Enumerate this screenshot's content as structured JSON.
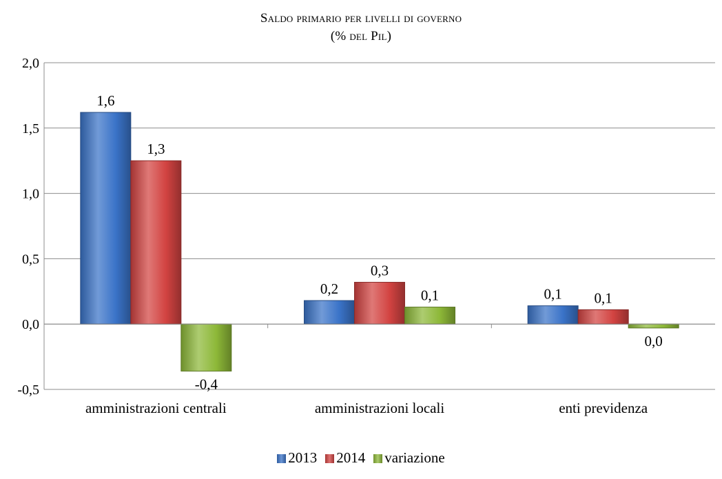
{
  "chart_data": {
    "type": "bar",
    "title": "Saldo primario per livelli di governo",
    "subtitle": "(% del Pil)",
    "categories": [
      "amministrazioni centrali",
      "amministrazioni locali",
      "enti previdenza"
    ],
    "series": [
      {
        "name": "2013",
        "values": [
          1.62,
          0.18,
          0.14
        ],
        "labels": [
          "1,6",
          "0,2",
          "0,1"
        ],
        "color": "#3A73C8"
      },
      {
        "name": "2014",
        "values": [
          1.25,
          0.32,
          0.11
        ],
        "labels": [
          "1,3",
          "0,3",
          "0,1"
        ],
        "color": "#D24341"
      },
      {
        "name": "variazione",
        "values": [
          -0.36,
          0.13,
          -0.03
        ],
        "labels": [
          "-0,4",
          "0,1",
          "0,0"
        ],
        "color": "#8DB838"
      }
    ],
    "yticks": [
      "2,0",
      "1,5",
      "1,0",
      "0,5",
      "0,0",
      "-0,5"
    ],
    "ylim": [
      -0.5,
      2.0
    ],
    "grid": true,
    "legend_position": "bottom"
  }
}
